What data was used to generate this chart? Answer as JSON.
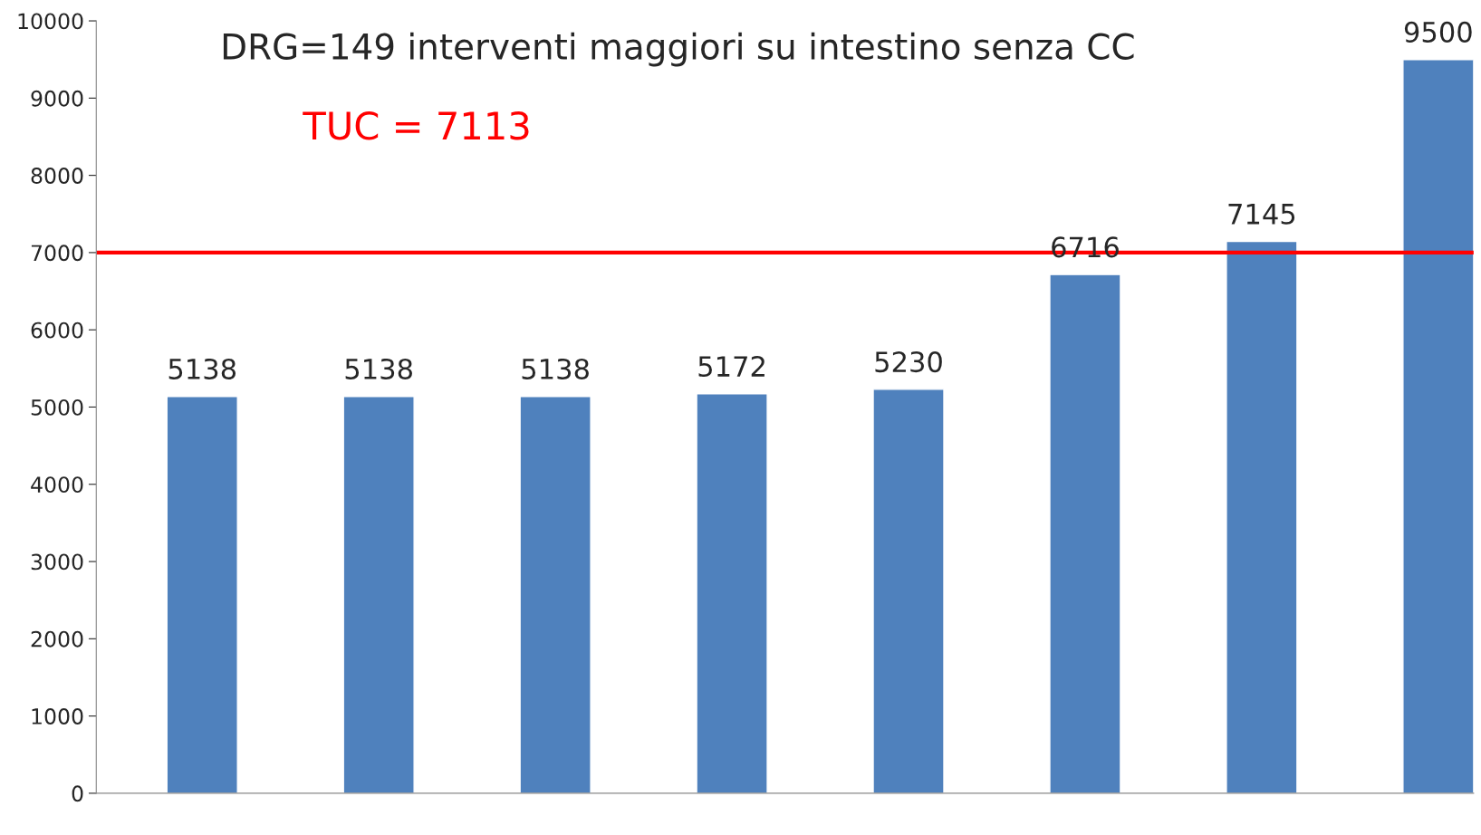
{
  "chart_data": {
    "type": "bar",
    "title": "DRG=149 interventi maggiori su intestino senza CC",
    "categories": [
      null,
      null,
      null,
      null,
      null,
      null,
      null,
      null
    ],
    "values": [
      5138,
      5138,
      5138,
      5172,
      5230,
      6716,
      7145,
      9500
    ],
    "color": "#4f81bd",
    "data_labels": true,
    "ylim": [
      0,
      10000
    ],
    "yticks": [
      0,
      1000,
      2000,
      3000,
      4000,
      5000,
      6000,
      7000,
      8000,
      9000,
      10000
    ],
    "grid": false,
    "legend": false,
    "annotations": [
      "TUC = 7113"
    ],
    "ref_lines": [
      {
        "axis": "y",
        "value": 7000,
        "color": "#ff0000"
      }
    ]
  }
}
